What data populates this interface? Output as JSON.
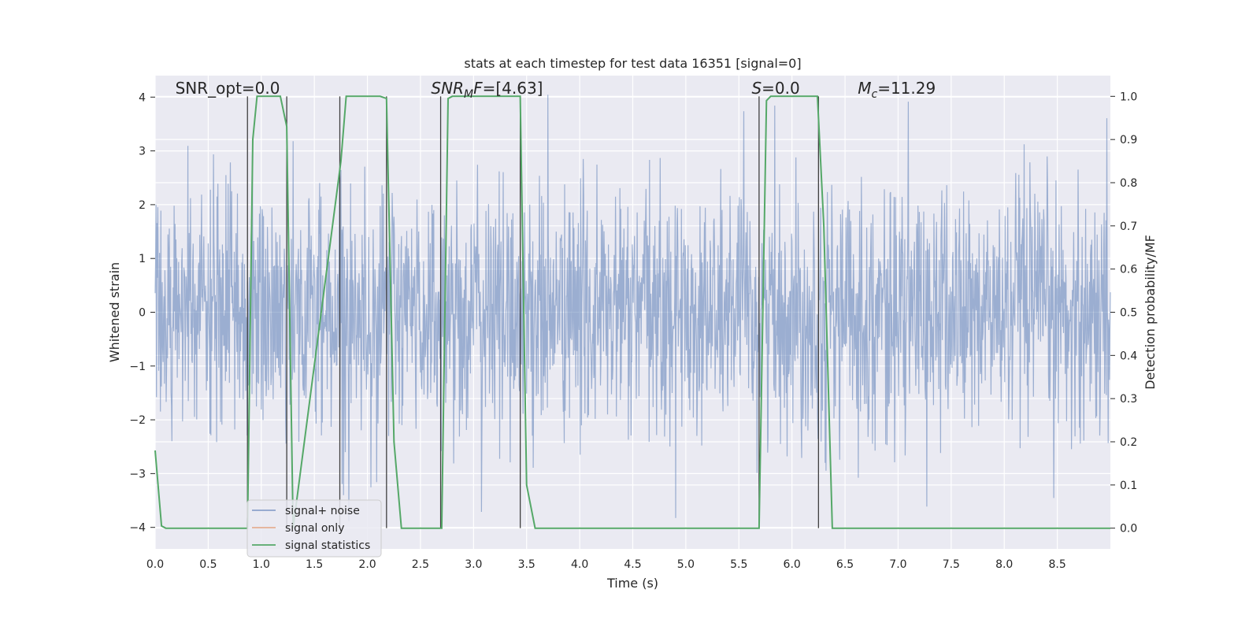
{
  "chart_data": {
    "type": "line",
    "title": "stats at each timestep for test data 16351 [signal=0]",
    "xlabel": "Time (s)",
    "ylabel": "Whitened strain",
    "y2label": "Detection probability/MF",
    "xlim": [
      0.0,
      9.0
    ],
    "ylim": [
      -4.4,
      4.4
    ],
    "y2lim": [
      -0.048,
      1.048
    ],
    "x_ticks": [
      "0.0",
      "0.5",
      "1.0",
      "1.5",
      "2.0",
      "2.5",
      "3.0",
      "3.5",
      "4.0",
      "4.5",
      "5.0",
      "5.5",
      "6.0",
      "6.5",
      "7.0",
      "7.5",
      "8.0",
      "8.5"
    ],
    "y_ticks": [
      "4",
      "3",
      "2",
      "1",
      "0",
      "−1",
      "−2",
      "−3",
      "−4"
    ],
    "y2_ticks": [
      "1.0",
      "0.9",
      "0.8",
      "0.7",
      "0.6",
      "0.5",
      "0.4",
      "0.3",
      "0.2",
      "0.1",
      "0.0"
    ],
    "grid": true,
    "legend_position": "lower-left",
    "annotations": [
      {
        "text": "SNR_opt=0.0",
        "x": 0.19,
        "y": 4.15
      },
      {
        "text": "SNR_MF=[4.63]",
        "x": 2.6,
        "y": 4.15
      },
      {
        "text": "S=0.0",
        "x": 5.62,
        "y": 4.15
      },
      {
        "text": "M_c=11.29",
        "x": 6.62,
        "y": 4.15
      }
    ],
    "series": [
      {
        "name": "signal+ noise",
        "axis": "left",
        "color": "#4c72b0",
        "style": "dense random noise, amplitude ~N(0,1), peaks to about ±4",
        "x_range": [
          0.0,
          9.0
        ],
        "sample_rate_hz": 240
      },
      {
        "name": "signal only",
        "axis": "left",
        "color": "#dd8452",
        "x": [
          0.0,
          9.0
        ],
        "y": [
          0.0,
          0.0
        ]
      },
      {
        "name": "signal statistics",
        "axis": "right",
        "color": "#55a868",
        "x": [
          0.0,
          0.06,
          0.1,
          0.5,
          0.87,
          0.92,
          0.96,
          1.18,
          1.24,
          1.3,
          1.75,
          1.8,
          2.12,
          2.18,
          2.25,
          2.32,
          2.7,
          2.76,
          2.8,
          3.44,
          3.5,
          3.58,
          5.69,
          5.76,
          5.8,
          6.24,
          6.3,
          6.38,
          6.44,
          9.0
        ],
        "y": [
          0.18,
          0.005,
          0.0,
          0.0,
          0.0,
          0.9,
          1.0,
          1.0,
          0.93,
          0.0,
          0.85,
          1.0,
          1.0,
          0.995,
          0.2,
          0.0,
          0.0,
          0.995,
          1.0,
          1.0,
          0.1,
          0.0,
          0.0,
          0.99,
          1.0,
          1.0,
          0.7,
          0.0,
          0.0,
          0.0
        ]
      }
    ],
    "vertical_lines": [
      0.87,
      1.24,
      1.74,
      2.18,
      2.69,
      3.44,
      5.69,
      6.25
    ],
    "vertical_line_color": "#404040"
  }
}
